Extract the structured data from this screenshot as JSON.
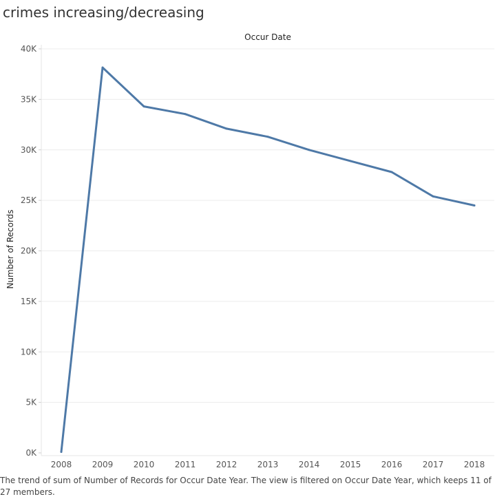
{
  "title": "crimes increasing/decreasing",
  "caption": "The trend of sum of Number of Records for Occur Date Year.  The view is filtered on Occur Date Year, which keeps 11 of 27 members.",
  "chart_data": {
    "type": "line",
    "xlabel": "Occur Date",
    "ylabel": "Number of Records",
    "x": [
      "2008",
      "2009",
      "2010",
      "2011",
      "2012",
      "2013",
      "2014",
      "2015",
      "2016",
      "2017",
      "2018"
    ],
    "series": [
      {
        "values": [
          100,
          38150,
          34300,
          33550,
          32100,
          31300,
          30000,
          28900,
          27800,
          25400,
          24500
        ]
      }
    ],
    "ylim": [
      0,
      40000
    ],
    "yticks": [
      0,
      5000,
      10000,
      15000,
      20000,
      25000,
      30000,
      35000,
      40000
    ],
    "ytick_labels": [
      "0K",
      "5K",
      "10K",
      "15K",
      "20K",
      "25K",
      "30K",
      "35K",
      "40K"
    ],
    "grid": true,
    "line_color": "#4e79a7"
  }
}
